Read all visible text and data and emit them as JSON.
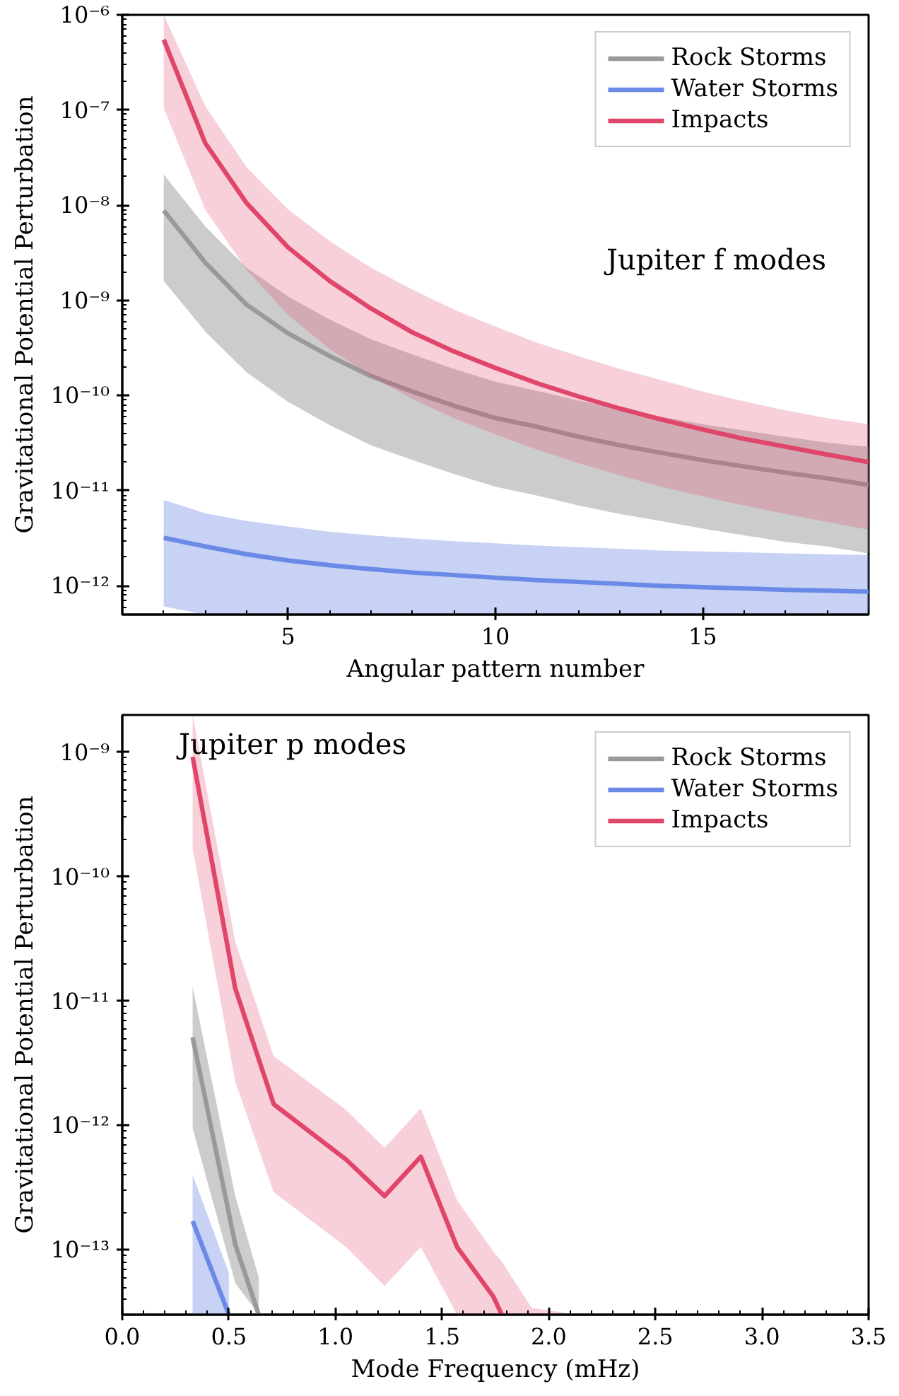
{
  "chart_data": [
    {
      "type": "line",
      "xlabel": "Angular pattern number",
      "ylabel": "Gravitational Potential Perturbation",
      "annotations": [
        "Jupiter f modes"
      ],
      "log": "y",
      "legend": "top right",
      "xlim": [
        1,
        19
      ],
      "ylim": [
        5e-13,
        1e-06
      ],
      "xticks": [
        5,
        10,
        15
      ],
      "yticks": [
        {
          "value": 1e-12,
          "label": "10⁻¹²"
        },
        {
          "value": 1e-11,
          "label": "10⁻¹¹"
        },
        {
          "value": 1e-10,
          "label": "10⁻¹⁰"
        },
        {
          "value": 1e-09,
          "label": "10⁻⁹"
        },
        {
          "value": 1e-08,
          "label": "10⁻⁸"
        },
        {
          "value": 1e-07,
          "label": "10⁻⁷"
        },
        {
          "value": 1e-06,
          "label": "10⁻⁶"
        }
      ],
      "x": [
        2,
        3,
        4,
        5,
        6,
        7,
        8,
        9,
        10,
        11,
        12,
        13,
        14,
        15,
        16,
        17,
        18,
        19
      ],
      "series": [
        {
          "name": "Rock Storms",
          "color": "#999999",
          "values": [
            8.8e-09,
            2.5e-09,
            9e-10,
            4.5e-10,
            2.6e-10,
            1.6e-10,
            1.1e-10,
            7.8e-11,
            5.8e-11,
            4.7e-11,
            3.7e-11,
            3e-11,
            2.5e-11,
            2.1e-11,
            1.8e-11,
            1.55e-11,
            1.35e-11,
            1.15e-11
          ],
          "upper": [
            2.1e-08,
            6e-09,
            2.2e-09,
            1.1e-09,
            6.3e-10,
            3.9e-10,
            2.7e-10,
            1.9e-10,
            1.4e-10,
            1.12e-10,
            8.9e-11,
            7.2e-11,
            6e-11,
            5e-11,
            4.3e-11,
            3.7e-11,
            3.2e-11,
            2.9e-11
          ],
          "lower": [
            1.6e-09,
            4.7e-10,
            1.75e-10,
            8.6e-11,
            4.9e-11,
            3e-11,
            2.1e-11,
            1.5e-11,
            1.1e-11,
            8.9e-12,
            7e-12,
            5.7e-12,
            4.8e-12,
            4e-12,
            3.4e-12,
            2.9e-12,
            2.6e-12,
            2.2e-12
          ]
        },
        {
          "name": "Water Storms",
          "color": "#6b8ae6",
          "values": [
            3.2e-12,
            2.6e-12,
            2.15e-12,
            1.85e-12,
            1.65e-12,
            1.5e-12,
            1.38e-12,
            1.3e-12,
            1.22e-12,
            1.15e-12,
            1.1e-12,
            1.05e-12,
            1e-12,
            9.7e-13,
            9.4e-13,
            9.1e-13,
            8.9e-13,
            8.7e-13
          ],
          "upper": [
            8e-12,
            5.8e-12,
            4.8e-12,
            4.2e-12,
            3.7e-12,
            3.4e-12,
            3.15e-12,
            2.95e-12,
            2.8e-12,
            2.65e-12,
            2.55e-12,
            2.45e-12,
            2.35e-12,
            2.3e-12,
            2.25e-12,
            2.2e-12,
            2.15e-12,
            2.1e-12
          ],
          "lower": [
            6.1e-13,
            5e-13,
            5e-13,
            5e-13,
            5e-13,
            5e-13,
            5e-13,
            5e-13,
            5e-13,
            5e-13,
            5e-13,
            5e-13,
            5e-13,
            5e-13,
            5e-13,
            5e-13,
            5e-13,
            5e-13
          ]
        },
        {
          "name": "Impacts",
          "color": "#e0456a",
          "values": [
            5.5e-07,
            4.5e-08,
            1.05e-08,
            3.6e-09,
            1.6e-09,
            8.2e-10,
            4.6e-10,
            2.9e-10,
            1.95e-10,
            1.35e-10,
            9.8e-11,
            7.3e-11,
            5.6e-11,
            4.4e-11,
            3.5e-11,
            2.9e-11,
            2.4e-11,
            2e-11
          ],
          "upper": [
            1e-06,
            1.1e-07,
            2.5e-08,
            9e-09,
            4.2e-09,
            2.2e-09,
            1.3e-09,
            8e-10,
            5.3e-10,
            3.6e-10,
            2.6e-10,
            1.9e-10,
            1.45e-10,
            1.1e-10,
            8.7e-11,
            7e-11,
            5.8e-11,
            5e-11
          ],
          "lower": [
            1.05e-07,
            9e-09,
            2.1e-09,
            7e-10,
            3.1e-10,
            1.6e-10,
            9.2e-11,
            5.8e-11,
            3.9e-11,
            2.7e-11,
            1.95e-11,
            1.45e-11,
            1.1e-11,
            8.7e-12,
            7e-12,
            5.7e-12,
            4.7e-12,
            3.9e-12
          ]
        }
      ]
    },
    {
      "type": "line",
      "xlabel": "Mode Frequency (mHz)",
      "ylabel": "Gravitational Potential Perturbation",
      "annotations": [
        "Jupiter p modes"
      ],
      "log": "y",
      "legend": "top right",
      "xlim": [
        0.0,
        3.5
      ],
      "ylim": [
        3e-14,
        2e-09
      ],
      "xticks": [
        {
          "value": 0,
          "label": "0.0"
        },
        0.5,
        {
          "value": 1,
          "label": "1.0"
        },
        1.5,
        {
          "value": 2,
          "label": "2.0"
        },
        2.5,
        {
          "value": 3,
          "label": "3.0"
        },
        3.5
      ],
      "yticks": [
        {
          "value": 1e-13,
          "label": "10⁻¹³"
        },
        {
          "value": 1e-12,
          "label": "10⁻¹²"
        },
        {
          "value": 1e-11,
          "label": "10⁻¹¹"
        },
        {
          "value": 1e-10,
          "label": "10⁻¹⁰"
        },
        {
          "value": 1e-09,
          "label": "10⁻⁹"
        }
      ],
      "series": [
        {
          "name": "Rock Storms",
          "color": "#999999",
          "x": [
            0.33,
            0.53,
            0.64
          ],
          "values": [
            5.1e-12,
            1.1e-13,
            3e-14
          ],
          "upper": [
            1.3e-11,
            2.7e-13,
            6e-14
          ],
          "lower": [
            9.5e-13,
            5.4e-14,
            3e-14
          ]
        },
        {
          "name": "Water Storms",
          "color": "#6b8ae6",
          "x": [
            0.33,
            0.5
          ],
          "values": [
            1.7e-13,
            3e-14
          ],
          "upper": [
            4e-13,
            6.5e-14
          ],
          "lower": [
            3e-14,
            3e-14
          ]
        },
        {
          "name": "Impacts",
          "color": "#e0456a",
          "x": [
            0.33,
            0.53,
            0.71,
            1.05,
            1.23,
            1.4,
            1.57,
            1.74,
            1.78,
            1.92,
            2.08
          ],
          "values": [
            9.2e-10,
            1.26e-11,
            1.48e-12,
            5.3e-13,
            2.7e-13,
            5.6e-13,
            1.05e-13,
            4.2e-14,
            3e-14,
            null,
            null
          ],
          "upper": [
            2e-09,
            3e-11,
            3.6e-12,
            1.33e-12,
            6.6e-13,
            1.37e-12,
            2.5e-13,
            9.7e-14,
            8e-14,
            3.4e-14,
            3.1e-14
          ],
          "lower": [
            1.7e-10,
            2.25e-12,
            2.9e-13,
            1.05e-13,
            5.1e-14,
            1.05e-13,
            3e-14,
            3e-14,
            3e-14,
            3e-14,
            3e-14
          ]
        }
      ]
    }
  ]
}
